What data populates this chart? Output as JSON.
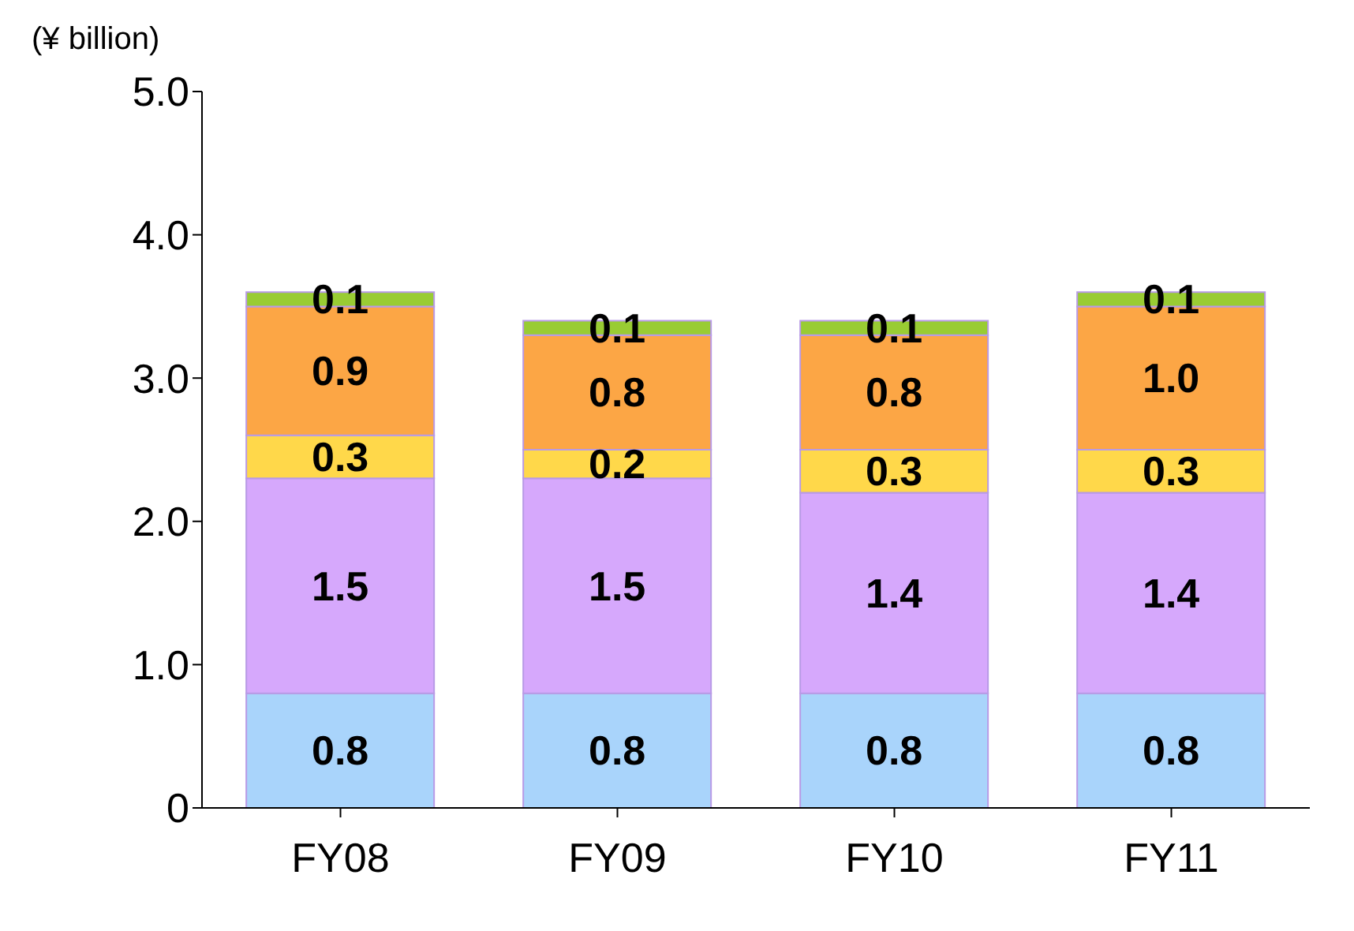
{
  "chart_data": {
    "type": "bar",
    "stacked": true,
    "ylabel": "(¥ billion)",
    "categories": [
      "FY08",
      "FY09",
      "FY10",
      "FY11"
    ],
    "series": [
      {
        "color": "#a9d4fb",
        "values": [
          0.8,
          0.8,
          0.8,
          0.8
        ],
        "value_labels": [
          "0.8",
          "0.8",
          "0.8",
          "0.8"
        ]
      },
      {
        "color": "#d6a8fc",
        "values": [
          1.5,
          1.5,
          1.4,
          1.4
        ],
        "value_labels": [
          "1.5",
          "1.5",
          "1.4",
          "1.4"
        ]
      },
      {
        "color": "#ffd84a",
        "values": [
          0.3,
          0.2,
          0.3,
          0.3
        ],
        "value_labels": [
          "0.3",
          "0.2",
          "0.3",
          "0.3"
        ]
      },
      {
        "color": "#fca645",
        "values": [
          0.9,
          0.8,
          0.8,
          1.0
        ],
        "value_labels": [
          "0.9",
          "0.8",
          "0.8",
          "1.0"
        ]
      },
      {
        "color": "#99cc33",
        "values": [
          0.1,
          0.1,
          0.1,
          0.1
        ],
        "value_labels": [
          "0.1",
          "0.1",
          "0.1",
          "0.1"
        ]
      }
    ],
    "ylim": [
      0,
      5
    ],
    "yticks": [
      0,
      {
        "value": 1,
        "label": "1.0"
      },
      {
        "value": 2,
        "label": "2.0"
      },
      {
        "value": 3,
        "label": "3.0"
      },
      {
        "value": 4,
        "label": "4.0"
      },
      {
        "value": 5,
        "label": "5.0"
      }
    ],
    "grid": false,
    "legend": false
  }
}
